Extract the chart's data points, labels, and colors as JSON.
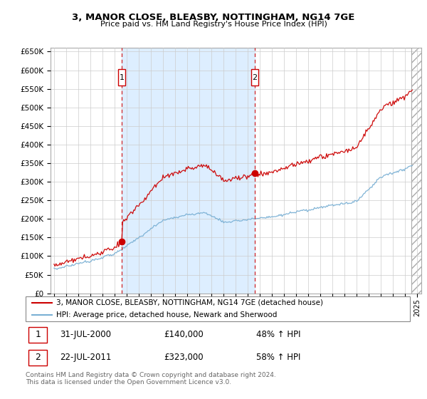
{
  "title": "3, MANOR CLOSE, BLEASBY, NOTTINGHAM, NG14 7GE",
  "subtitle": "Price paid vs. HM Land Registry's House Price Index (HPI)",
  "legend_line1": "3, MANOR CLOSE, BLEASBY, NOTTINGHAM, NG14 7GE (detached house)",
  "legend_line2": "HPI: Average price, detached house, Newark and Sherwood",
  "transaction1_date": "31-JUL-2000",
  "transaction1_price": "£140,000",
  "transaction1_hpi": "48% ↑ HPI",
  "transaction2_date": "22-JUL-2011",
  "transaction2_price": "£323,000",
  "transaction2_hpi": "58% ↑ HPI",
  "footer": "Contains HM Land Registry data © Crown copyright and database right 2024.\nThis data is licensed under the Open Government Licence v3.0.",
  "red_color": "#cc0000",
  "blue_color": "#7ab0d4",
  "vline_color": "#cc0000",
  "grid_color": "#cccccc",
  "bg_color": "#ffffff",
  "shade_color": "#ddeeff",
  "ylim": [
    0,
    660000
  ],
  "yticks": [
    0,
    50000,
    100000,
    150000,
    200000,
    250000,
    300000,
    350000,
    400000,
    450000,
    500000,
    550000,
    600000,
    650000
  ],
  "xlim_start": 1994.7,
  "xlim_end": 2025.3,
  "hatch_start": 2024.5
}
